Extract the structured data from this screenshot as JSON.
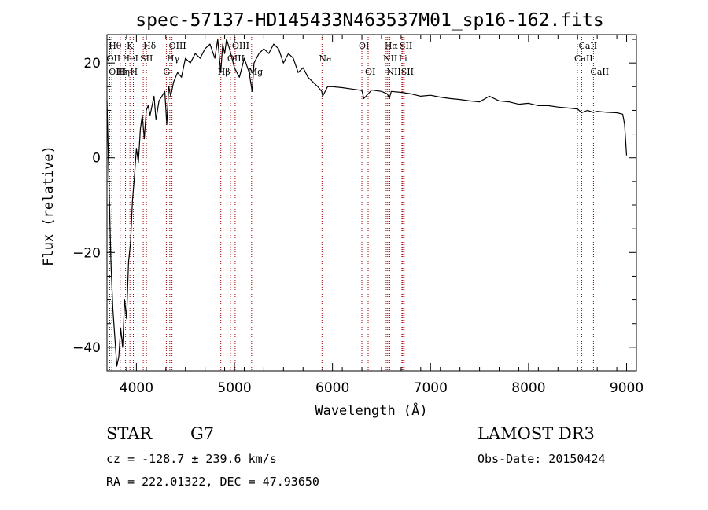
{
  "chart_data": {
    "type": "line",
    "title": "spec-57137-HD145433N463537M01_sp16-162.fits",
    "xlabel": "Wavelength (Å)",
    "ylabel": "Flux (relative)",
    "xlim": [
      3700,
      9100
    ],
    "ylim": [
      -45,
      26
    ],
    "x_ticks": [
      4000,
      5000,
      6000,
      7000,
      8000,
      9000
    ],
    "y_ticks": [
      -40,
      -20,
      0,
      20
    ],
    "series": [
      {
        "name": "flux",
        "x": [
          3700,
          3720,
          3740,
          3760,
          3780,
          3800,
          3820,
          3840,
          3860,
          3880,
          3900,
          3920,
          3940,
          3960,
          3980,
          4000,
          4020,
          4040,
          4060,
          4080,
          4100,
          4120,
          4140,
          4160,
          4180,
          4200,
          4230,
          4260,
          4290,
          4310,
          4330,
          4350,
          4380,
          4420,
          4460,
          4500,
          4550,
          4600,
          4650,
          4700,
          4750,
          4800,
          4830,
          4860,
          4880,
          4900,
          4920,
          4950,
          5000,
          5050,
          5100,
          5150,
          5180,
          5200,
          5250,
          5300,
          5350,
          5400,
          5450,
          5500,
          5550,
          5600,
          5650,
          5700,
          5750,
          5800,
          5850,
          5890,
          5900,
          5950,
          6000,
          6100,
          6200,
          6300,
          6320,
          6400,
          6500,
          6560,
          6580,
          6600,
          6700,
          6800,
          6900,
          7000,
          7100,
          7200,
          7300,
          7400,
          7500,
          7600,
          7700,
          7800,
          7900,
          8000,
          8100,
          8200,
          8300,
          8400,
          8500,
          8540,
          8600,
          8660,
          8700,
          8800,
          8900,
          8960,
          8980,
          9000
        ],
        "y": [
          12,
          -5,
          -22,
          -32,
          -38,
          -44,
          -42,
          -36,
          -40,
          -30,
          -34,
          -22,
          -18,
          -9,
          -4,
          2,
          -1,
          6,
          9,
          4,
          10,
          11,
          9,
          11,
          13,
          8,
          12,
          13,
          14,
          7,
          15,
          13,
          16,
          18,
          17,
          21,
          20,
          22,
          21,
          23,
          24,
          21,
          25,
          18,
          24,
          22,
          25,
          23,
          19,
          17,
          21,
          18,
          14,
          20,
          22,
          23,
          22,
          24,
          23,
          20,
          22,
          21,
          18,
          19,
          17,
          16,
          15,
          14,
          13,
          15,
          15,
          14.8,
          14.5,
          14.2,
          12.5,
          14.3,
          14.0,
          13.5,
          12.5,
          14,
          13.8,
          13.5,
          13,
          13.2,
          12.8,
          12.5,
          12.3,
          12,
          11.8,
          13,
          12,
          11.8,
          11.3,
          11.5,
          11,
          11,
          10.7,
          10.5,
          10.3,
          9.5,
          10,
          9.6,
          9.8,
          9.6,
          9.5,
          9.2,
          7,
          0.5
        ]
      }
    ],
    "line_markers": [
      {
        "label": "Hθ",
        "x": 3750,
        "row": 1
      },
      {
        "label": "OII",
        "x": 3728,
        "row": 2
      },
      {
        "label": "OIII",
        "x": 3750,
        "row": 3
      },
      {
        "label": "K",
        "x": 3934,
        "row": 1
      },
      {
        "label": "HeI",
        "x": 3889,
        "row": 2
      },
      {
        "label": "Hη",
        "x": 3835,
        "row": 3
      },
      {
        "label": "SII",
        "x": 4070,
        "row": 2
      },
      {
        "label": "H",
        "x": 3969,
        "row": 3
      },
      {
        "label": "Hδ",
        "x": 4102,
        "row": 1
      },
      {
        "label": "OIII",
        "x": 4363,
        "row": 1
      },
      {
        "label": "Hγ",
        "x": 4341,
        "row": 2
      },
      {
        "label": "G",
        "x": 4305,
        "row": 3
      },
      {
        "label": "OIII",
        "x": 5007,
        "row": 1
      },
      {
        "label": "OIII",
        "x": 4959,
        "row": 2
      },
      {
        "label": "Hβ",
        "x": 4861,
        "row": 3
      },
      {
        "label": "Mg",
        "x": 5175,
        "row": 3
      },
      {
        "label": "Na",
        "x": 5893,
        "row": 2
      },
      {
        "label": "OI",
        "x": 6300,
        "row": 1
      },
      {
        "label": "OI",
        "x": 6364,
        "row": 3
      },
      {
        "label": "Hα",
        "x": 6563,
        "row": 1
      },
      {
        "label": "NII",
        "x": 6548,
        "row": 2
      },
      {
        "label": "NII",
        "x": 6584,
        "row": 3
      },
      {
        "label": "SII",
        "x": 6717,
        "row": 1
      },
      {
        "label": "Li",
        "x": 6708,
        "row": 2
      },
      {
        "label": "SII",
        "x": 6731,
        "row": 3
      },
      {
        "label": "CaII",
        "x": 8542,
        "row": 1
      },
      {
        "label": "CaII",
        "x": 8498,
        "row": 2
      },
      {
        "label": "CaII",
        "x": 8662,
        "row": 3
      }
    ],
    "marker_color": "#a00000"
  },
  "info": {
    "class": "STAR",
    "subclass": "G7",
    "survey": "LAMOST DR3",
    "cz": "cz = -128.7 ± 239.6 km/s",
    "obs_date": "Obs-Date: 20150424",
    "coords": "RA = 222.01322, DEC =  47.93650"
  }
}
